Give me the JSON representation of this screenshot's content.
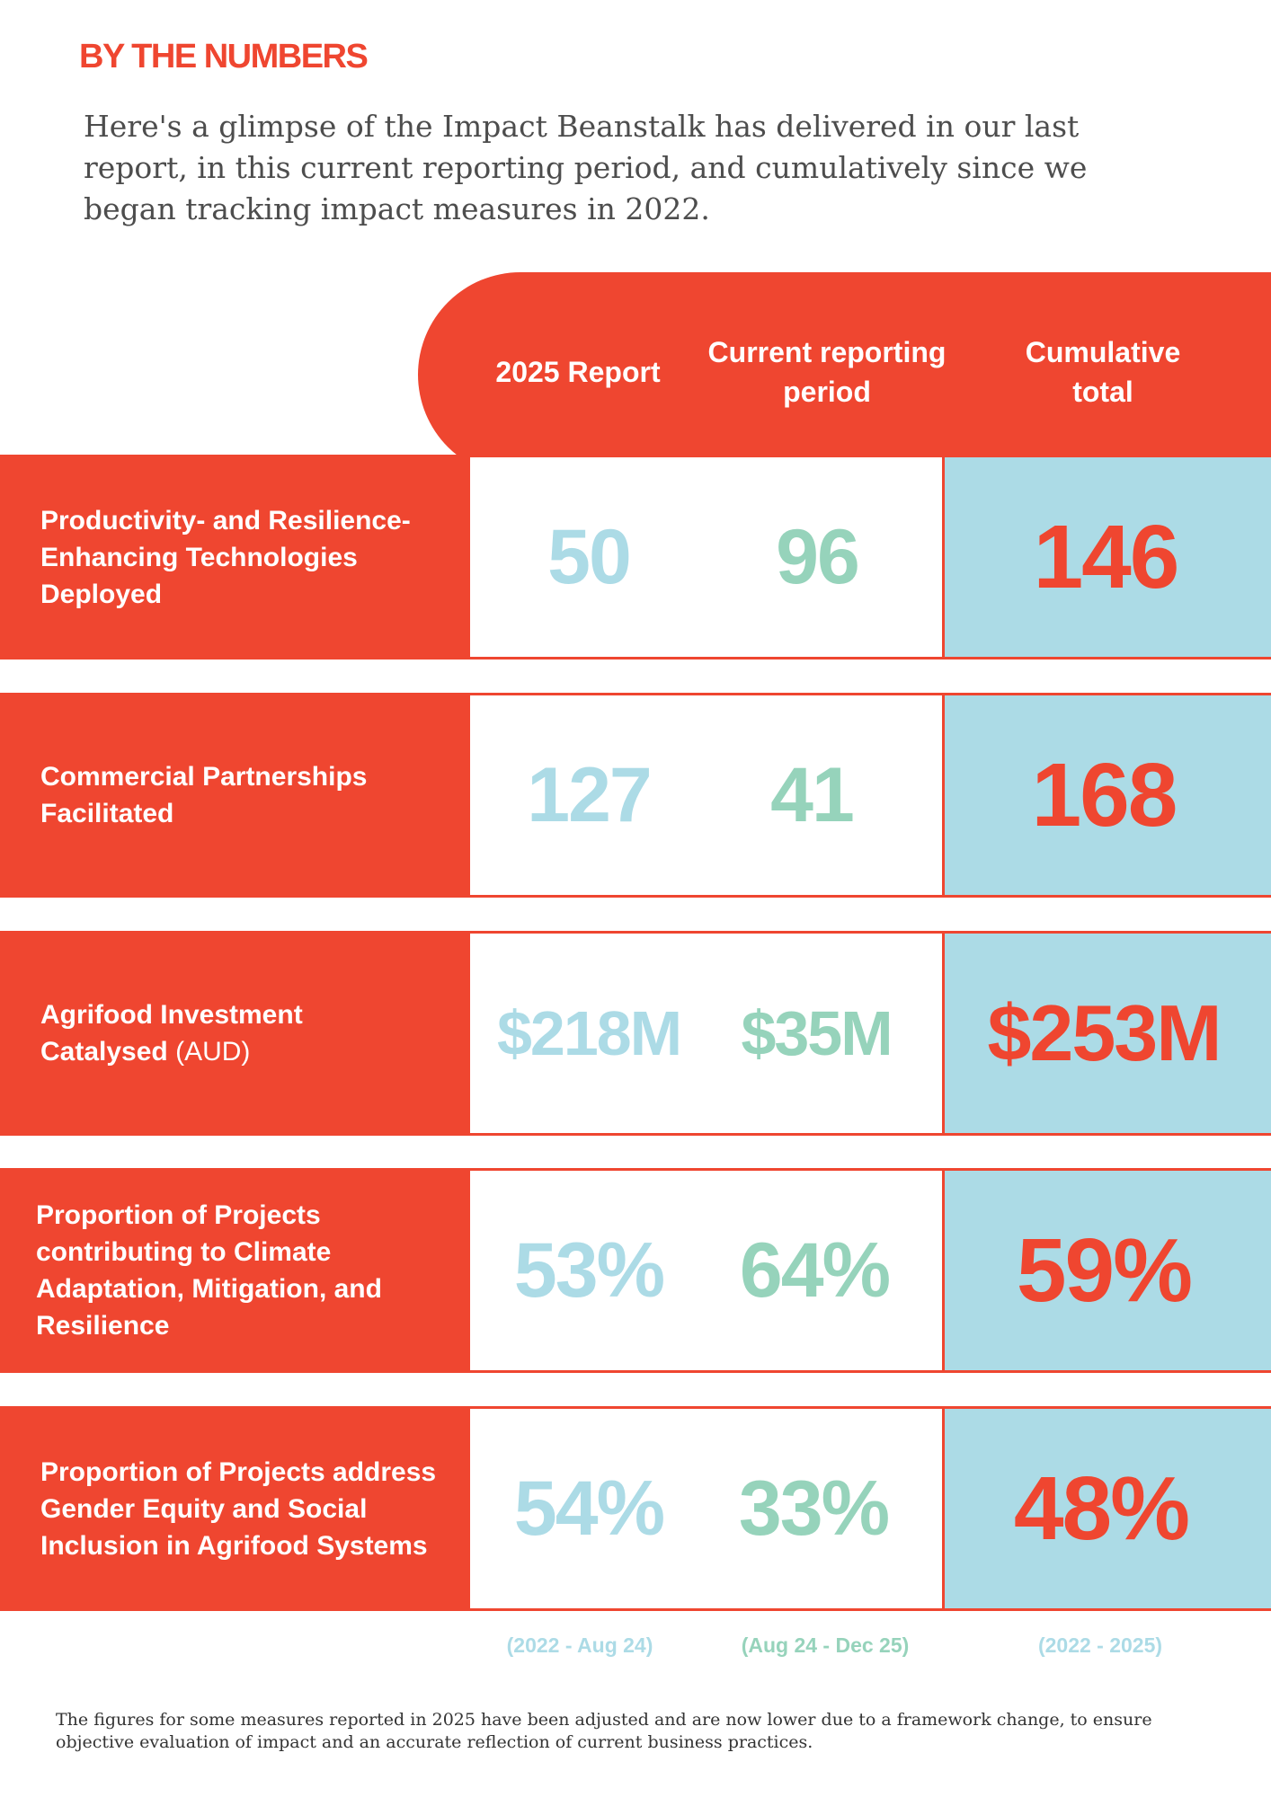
{
  "heading": "BY THE NUMBERS",
  "intro": "Here's a glimpse of the Impact Beanstalk has delivered in our last report, in this current reporting period, and cumulatively since we began tracking impact measures in 2022.",
  "columns": {
    "prev": "2025 Report",
    "current": "Current reporting period",
    "cumulative": "Cumulative total"
  },
  "rows": [
    {
      "label": "Productivity- and Resilience-Enhancing Technologies Deployed",
      "label_suffix": "",
      "prev": "50",
      "current": "96",
      "cumulative": "146"
    },
    {
      "label": "Commercial Partnerships Facilitated",
      "label_suffix": "",
      "prev": "127",
      "current": "41",
      "cumulative": "168"
    },
    {
      "label": "Agrifood Investment Catalysed",
      "label_suffix": "(AUD)",
      "prev": "$218M",
      "current": "$35M",
      "cumulative": "$253M"
    },
    {
      "label": "Proportion of Projects contributing to Climate Adaptation, Mitigation, and Resilience",
      "label_suffix": "",
      "prev": "53%",
      "current": "64%",
      "cumulative": "59%"
    },
    {
      "label": "Proportion of Projects address Gender Equity and Social Inclusion in Agrifood Systems",
      "label_suffix": "",
      "prev": "54%",
      "current": "33%",
      "cumulative": "48%"
    }
  ],
  "periods": {
    "prev": "(2022 - Aug 24)",
    "current": "(Aug 24 - Dec 25)",
    "cumulative": "(2022 - 2025)"
  },
  "footnote": "The figures for some measures reported in 2025 have been adjusted and are now lower due to a framework change, to ensure objective evaluation of impact and an accurate reflection of current business practices.",
  "colors": {
    "accent_red": "#ef4630",
    "light_blue": "#acdbe6",
    "mint_green": "#96d3bb"
  }
}
